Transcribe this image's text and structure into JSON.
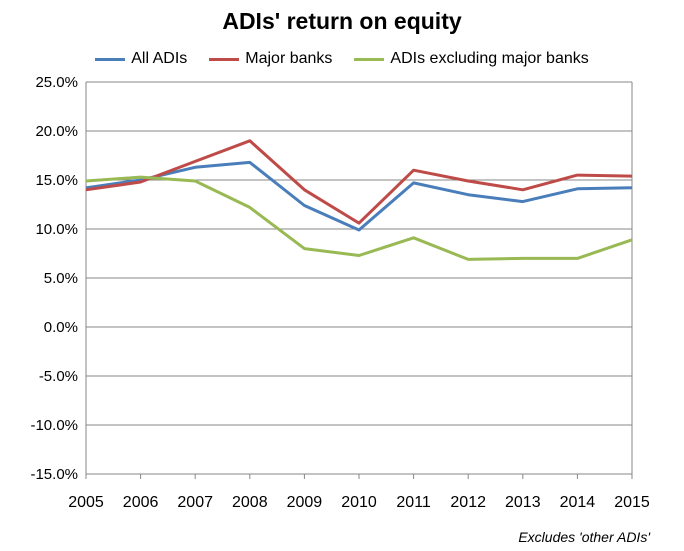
{
  "chart_data": {
    "type": "line",
    "title": "ADIs' return on equity",
    "x": [
      "2005",
      "2006",
      "2007",
      "2008",
      "2009",
      "2010",
      "2011",
      "2012",
      "2013",
      "2014",
      "2015"
    ],
    "ylim": [
      -15,
      25
    ],
    "yticks": [
      25,
      20,
      15,
      10,
      5,
      0,
      -5,
      -10,
      -15
    ],
    "ytick_labels": [
      "25.0%",
      "20.0%",
      "15.0%",
      "10.0%",
      "5.0%",
      "0.0%",
      "-5.0%",
      "-10.0%",
      "-15.0%"
    ],
    "grid": true,
    "legend_position": "top",
    "series": [
      {
        "name": "All ADIs",
        "color": "#4a7ebb",
        "values": [
          14.2,
          15.0,
          16.3,
          16.8,
          12.4,
          9.9,
          14.7,
          13.5,
          12.8,
          14.1,
          14.2
        ]
      },
      {
        "name": "Major banks",
        "color": "#be4b48",
        "values": [
          14.0,
          14.8,
          16.9,
          19.0,
          14.0,
          10.6,
          16.0,
          14.9,
          14.0,
          15.5,
          15.4
        ]
      },
      {
        "name": "ADIs excluding major banks",
        "color": "#98b954",
        "values": [
          14.9,
          15.3,
          14.9,
          12.2,
          8.0,
          7.3,
          9.1,
          6.9,
          7.0,
          7.0,
          8.9
        ]
      }
    ],
    "footnote": "Excludes 'other ADIs'"
  }
}
